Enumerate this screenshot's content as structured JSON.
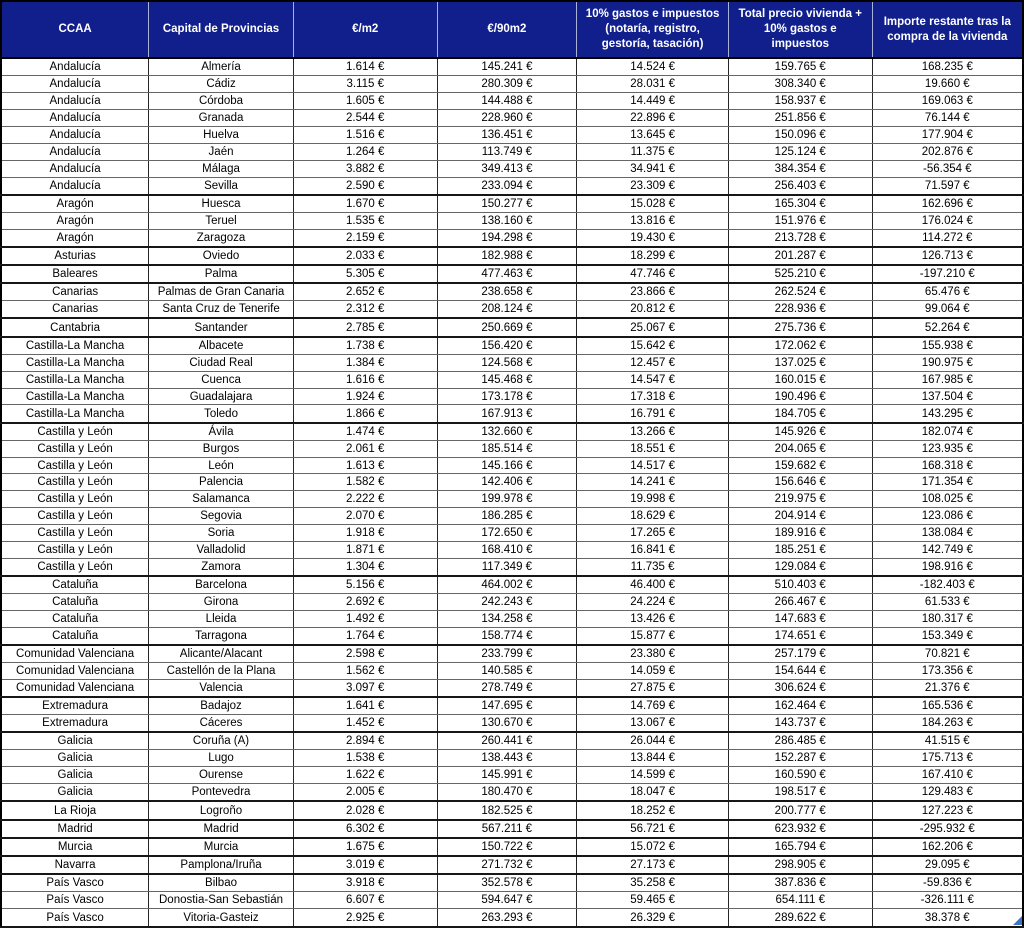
{
  "table": {
    "columns": [
      "CCAA",
      "Capital de Provincias",
      "€/m2",
      "€/90m2",
      "10% gastos e impuestos (notaría, registro, gestoría, tasación)",
      "Total precio vivienda + 10% gastos e impuestos",
      "Importe restante tras la compra de la vivienda"
    ],
    "rows": [
      [
        "Andalucía",
        "Almería",
        "1.614 €",
        "145.241 €",
        "14.524 €",
        "159.765 €",
        "168.235 €"
      ],
      [
        "Andalucía",
        "Cádiz",
        "3.115 €",
        "280.309 €",
        "28.031 €",
        "308.340 €",
        "19.660 €"
      ],
      [
        "Andalucía",
        "Córdoba",
        "1.605 €",
        "144.488 €",
        "14.449 €",
        "158.937 €",
        "169.063 €"
      ],
      [
        "Andalucía",
        "Granada",
        "2.544 €",
        "228.960 €",
        "22.896 €",
        "251.856 €",
        "76.144 €"
      ],
      [
        "Andalucía",
        "Huelva",
        "1.516 €",
        "136.451 €",
        "13.645 €",
        "150.096 €",
        "177.904 €"
      ],
      [
        "Andalucía",
        "Jaén",
        "1.264 €",
        "113.749 €",
        "11.375 €",
        "125.124 €",
        "202.876 €"
      ],
      [
        "Andalucía",
        "Málaga",
        "3.882 €",
        "349.413 €",
        "34.941 €",
        "384.354 €",
        "-56.354 €"
      ],
      [
        "Andalucía",
        "Sevilla",
        "2.590 €",
        "233.094 €",
        "23.309 €",
        "256.403 €",
        "71.597 €"
      ],
      [
        "Aragón",
        "Huesca",
        "1.670 €",
        "150.277 €",
        "15.028 €",
        "165.304 €",
        "162.696 €"
      ],
      [
        "Aragón",
        "Teruel",
        "1.535 €",
        "138.160 €",
        "13.816 €",
        "151.976 €",
        "176.024 €"
      ],
      [
        "Aragón",
        "Zaragoza",
        "2.159 €",
        "194.298 €",
        "19.430 €",
        "213.728 €",
        "114.272 €"
      ],
      [
        "Asturias",
        "Oviedo",
        "2.033 €",
        "182.988 €",
        "18.299 €",
        "201.287 €",
        "126.713 €"
      ],
      [
        "Baleares",
        "Palma",
        "5.305 €",
        "477.463 €",
        "47.746 €",
        "525.210 €",
        "-197.210 €"
      ],
      [
        "Canarias",
        "Palmas de Gran Canaria",
        "2.652 €",
        "238.658 €",
        "23.866 €",
        "262.524 €",
        "65.476 €"
      ],
      [
        "Canarias",
        "Santa Cruz de Tenerife",
        "2.312 €",
        "208.124 €",
        "20.812 €",
        "228.936 €",
        "99.064 €"
      ],
      [
        "Cantabria",
        "Santander",
        "2.785 €",
        "250.669 €",
        "25.067 €",
        "275.736 €",
        "52.264 €"
      ],
      [
        "Castilla-La Mancha",
        "Albacete",
        "1.738 €",
        "156.420 €",
        "15.642 €",
        "172.062 €",
        "155.938 €"
      ],
      [
        "Castilla-La Mancha",
        "Ciudad Real",
        "1.384 €",
        "124.568 €",
        "12.457 €",
        "137.025 €",
        "190.975 €"
      ],
      [
        "Castilla-La Mancha",
        "Cuenca",
        "1.616 €",
        "145.468 €",
        "14.547 €",
        "160.015 €",
        "167.985 €"
      ],
      [
        "Castilla-La Mancha",
        "Guadalajara",
        "1.924 €",
        "173.178 €",
        "17.318 €",
        "190.496 €",
        "137.504 €"
      ],
      [
        "Castilla-La Mancha",
        "Toledo",
        "1.866 €",
        "167.913 €",
        "16.791 €",
        "184.705 €",
        "143.295 €"
      ],
      [
        "Castilla y León",
        "Ávila",
        "1.474 €",
        "132.660 €",
        "13.266 €",
        "145.926 €",
        "182.074 €"
      ],
      [
        "Castilla y León",
        "Burgos",
        "2.061 €",
        "185.514 €",
        "18.551 €",
        "204.065 €",
        "123.935 €"
      ],
      [
        "Castilla y León",
        "León",
        "1.613 €",
        "145.166 €",
        "14.517 €",
        "159.682 €",
        "168.318 €"
      ],
      [
        "Castilla y León",
        "Palencia",
        "1.582 €",
        "142.406 €",
        "14.241 €",
        "156.646 €",
        "171.354 €"
      ],
      [
        "Castilla y León",
        "Salamanca",
        "2.222 €",
        "199.978 €",
        "19.998 €",
        "219.975 €",
        "108.025 €"
      ],
      [
        "Castilla y León",
        "Segovia",
        "2.070 €",
        "186.285 €",
        "18.629 €",
        "204.914 €",
        "123.086 €"
      ],
      [
        "Castilla y León",
        "Soria",
        "1.918 €",
        "172.650 €",
        "17.265 €",
        "189.916 €",
        "138.084 €"
      ],
      [
        "Castilla y León",
        "Valladolid",
        "1.871 €",
        "168.410 €",
        "16.841 €",
        "185.251 €",
        "142.749 €"
      ],
      [
        "Castilla y León",
        "Zamora",
        "1.304 €",
        "117.349 €",
        "11.735 €",
        "129.084 €",
        "198.916 €"
      ],
      [
        "Cataluña",
        "Barcelona",
        "5.156 €",
        "464.002 €",
        "46.400 €",
        "510.403 €",
        "-182.403 €"
      ],
      [
        "Cataluña",
        "Girona",
        "2.692 €",
        "242.243 €",
        "24.224 €",
        "266.467 €",
        "61.533 €"
      ],
      [
        "Cataluña",
        "Lleida",
        "1.492 €",
        "134.258 €",
        "13.426 €",
        "147.683 €",
        "180.317 €"
      ],
      [
        "Cataluña",
        "Tarragona",
        "1.764 €",
        "158.774 €",
        "15.877 €",
        "174.651 €",
        "153.349 €"
      ],
      [
        "Comunidad Valenciana",
        "Alicante/Alacant",
        "2.598 €",
        "233.799 €",
        "23.380 €",
        "257.179 €",
        "70.821 €"
      ],
      [
        "Comunidad Valenciana",
        "Castellón de la Plana",
        "1.562 €",
        "140.585 €",
        "14.059 €",
        "154.644 €",
        "173.356 €"
      ],
      [
        "Comunidad Valenciana",
        "Valencia",
        "3.097 €",
        "278.749 €",
        "27.875 €",
        "306.624 €",
        "21.376 €"
      ],
      [
        "Extremadura",
        "Badajoz",
        "1.641 €",
        "147.695 €",
        "14.769 €",
        "162.464 €",
        "165.536 €"
      ],
      [
        "Extremadura",
        "Cáceres",
        "1.452 €",
        "130.670 €",
        "13.067 €",
        "143.737 €",
        "184.263 €"
      ],
      [
        "Galicia",
        "Coruña (A)",
        "2.894 €",
        "260.441 €",
        "26.044 €",
        "286.485 €",
        "41.515 €"
      ],
      [
        "Galicia",
        "Lugo",
        "1.538 €",
        "138.443 €",
        "13.844 €",
        "152.287 €",
        "175.713 €"
      ],
      [
        "Galicia",
        "Ourense",
        "1.622 €",
        "145.991 €",
        "14.599 €",
        "160.590 €",
        "167.410 €"
      ],
      [
        "Galicia",
        "Pontevedra",
        "2.005 €",
        "180.470 €",
        "18.047 €",
        "198.517 €",
        "129.483 €"
      ],
      [
        "La Rioja",
        "Logroño",
        "2.028 €",
        "182.525 €",
        "18.252 €",
        "200.777 €",
        "127.223 €"
      ],
      [
        "Madrid",
        "Madrid",
        "6.302 €",
        "567.211 €",
        "56.721 €",
        "623.932 €",
        "-295.932 €"
      ],
      [
        "Murcia",
        "Murcia",
        "1.675 €",
        "150.722 €",
        "15.072 €",
        "165.794 €",
        "162.206 €"
      ],
      [
        "Navarra",
        "Pamplona/Iruña",
        "3.019 €",
        "271.732 €",
        "27.173 €",
        "298.905 €",
        "29.095 €"
      ],
      [
        "País Vasco",
        "Bilbao",
        "3.918 €",
        "352.578 €",
        "35.258 €",
        "387.836 €",
        "-59.836 €"
      ],
      [
        "País Vasco",
        "Donostia-San Sebastián",
        "6.607 €",
        "594.647 €",
        "59.465 €",
        "654.111 €",
        "-326.111 €"
      ],
      [
        "País Vasco",
        "Vitoria-Gasteiz",
        "2.925 €",
        "263.293 €",
        "26.329 €",
        "289.622 €",
        "38.378 €"
      ]
    ]
  },
  "colors": {
    "header_bg": "#101F8C",
    "header_text": "#FFFFFF",
    "fill_handle": "#4472C4"
  }
}
